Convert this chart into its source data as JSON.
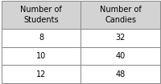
{
  "col1_header": "Number of\nStudents",
  "col2_header": "Number of\nCandies",
  "rows": [
    [
      "8",
      "32"
    ],
    [
      "10",
      "40"
    ],
    [
      "12",
      "48"
    ]
  ],
  "header_bg": "#d3d3d3",
  "cell_bg": "#ffffff",
  "border_color": "#888888",
  "text_color": "#000000",
  "font_size": 7.0,
  "fig_width": 2.01,
  "fig_height": 1.05,
  "dpi": 100
}
